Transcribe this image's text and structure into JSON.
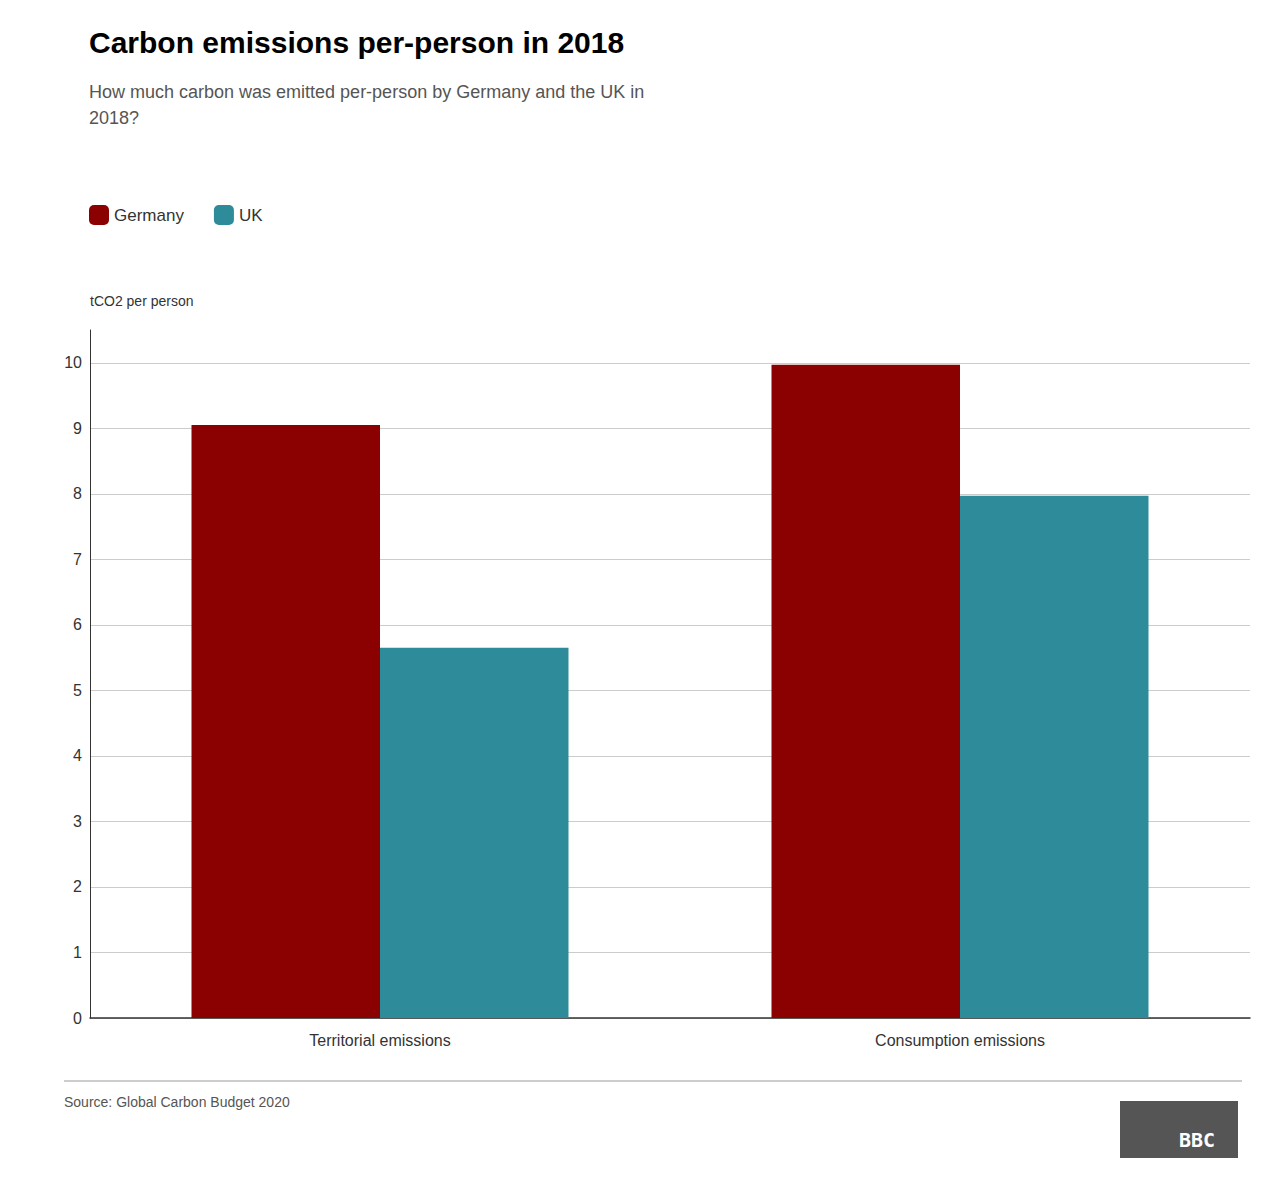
{
  "chart_data": {
    "type": "bar",
    "title": "Carbon emissions per-person in 2018",
    "subtitle": "How much carbon was emitted per-person by Germany and the UK in\n2018?",
    "ylabel": "tCO2 per person",
    "source": "Source: Global Carbon Budget 2020",
    "annotations": [
      "BBC"
    ],
    "categories": [
      "Territorial emissions",
      "Consumption emissions"
    ],
    "series": [
      {
        "name": "Germany",
        "color": "#8B0000",
        "values": [
          9.05,
          9.97
        ]
      },
      {
        "name": "UK",
        "color": "#2E8B9A",
        "values": [
          5.65,
          7.97
        ]
      }
    ],
    "ylim": [
      0,
      10.5
    ],
    "yticks": [
      0,
      1,
      2,
      3,
      4,
      5,
      6,
      7,
      8,
      9,
      10
    ],
    "grid": true,
    "legend": "top left"
  }
}
